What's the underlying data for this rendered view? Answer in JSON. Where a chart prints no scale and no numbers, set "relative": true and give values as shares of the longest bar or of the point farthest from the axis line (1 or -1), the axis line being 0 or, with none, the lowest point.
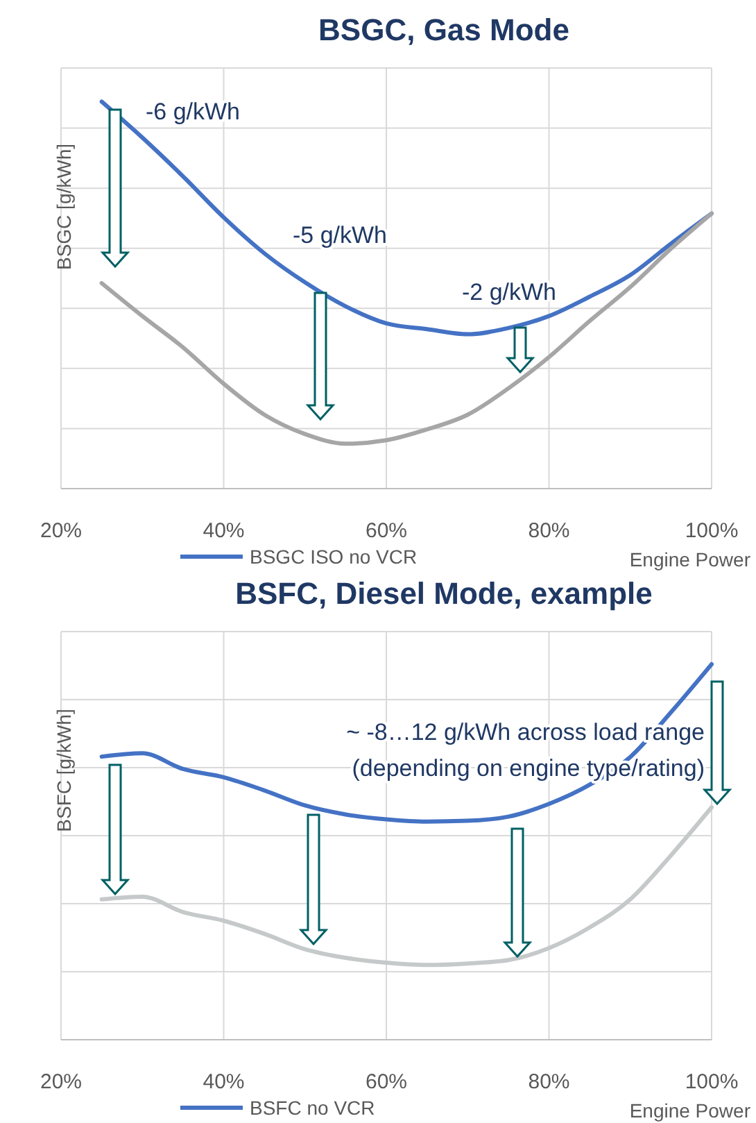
{
  "chart_data": [
    {
      "type": "line",
      "title": "BSGC, Gas Mode",
      "xlabel": "Engine Power",
      "ylabel": "BSGC [g/kWh]",
      "relative": true,
      "x": [
        25,
        30,
        35,
        40,
        45,
        50,
        55,
        60,
        65,
        70,
        75,
        80,
        85,
        90,
        95,
        100
      ],
      "xlim": [
        20,
        100
      ],
      "xticks": [
        {
          "value": 20,
          "label": "20%"
        },
        {
          "value": 40,
          "label": "40%"
        },
        {
          "value": 60,
          "label": "60%"
        },
        {
          "value": 80,
          "label": "80%"
        },
        {
          "value": 100,
          "label": "100%"
        }
      ],
      "grid": true,
      "legend": "bottom",
      "annotations": [
        "-6 g/kWh",
        "-5 g/kWh",
        "-2 g/kWh"
      ],
      "series": [
        {
          "name": "BSGC ISO no VCR",
          "color": "#4472c4",
          "values": [
            1,
            0.907,
            0.807,
            0.701,
            0.608,
            0.533,
            0.471,
            0.427,
            0.412,
            0.399,
            0.415,
            0.446,
            0.496,
            0.552,
            0.633,
            0.711
          ]
        },
        {
          "color": "#a6a6a6",
          "values": [
            0.531,
            0.446,
            0.365,
            0.271,
            0.191,
            0.141,
            0.116,
            0.125,
            0.153,
            0.191,
            0.259,
            0.34,
            0.433,
            0.521,
            0.62,
            0.711
          ]
        }
      ]
    },
    {
      "type": "line",
      "title": "BSFC, Diesel Mode, example",
      "xlabel": "Engine Power",
      "ylabel": "BSFC [g/kWh]",
      "relative": true,
      "x": [
        25,
        30,
        35,
        40,
        45,
        50,
        55,
        60,
        65,
        70,
        75,
        80,
        85,
        90,
        95,
        100
      ],
      "xlim": [
        20,
        100
      ],
      "xticks": [
        {
          "value": 20,
          "label": "20%"
        },
        {
          "value": 40,
          "label": "40%"
        },
        {
          "value": 60,
          "label": "60%"
        },
        {
          "value": 80,
          "label": "80%"
        },
        {
          "value": 100,
          "label": "100%"
        }
      ],
      "grid": true,
      "legend": "bottom",
      "annotations": [
        "~ -8…12 g/kWh across load range\n(depending on engine type/rating)"
      ],
      "series": [
        {
          "name": "BSFC no VCR",
          "color": "#4472c4",
          "values": [
            0.754,
            0.763,
            0.721,
            0.699,
            0.664,
            0.624,
            0.6,
            0.587,
            0.581,
            0.583,
            0.594,
            0.628,
            0.679,
            0.753,
            0.872,
            1
          ]
        },
        {
          "color": "#c5c9c9",
          "values": [
            0.374,
            0.381,
            0.34,
            0.317,
            0.282,
            0.241,
            0.218,
            0.205,
            0.199,
            0.203,
            0.212,
            0.244,
            0.299,
            0.374,
            0.491,
            0.619
          ]
        }
      ]
    }
  ]
}
